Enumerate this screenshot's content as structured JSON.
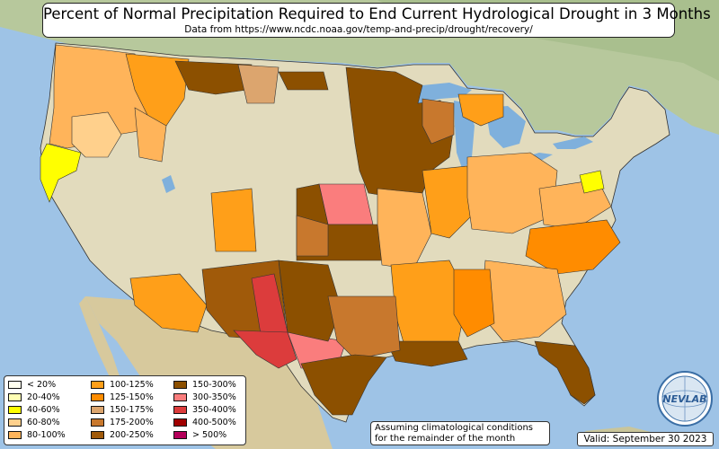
{
  "title": "Percent of Normal Precipitation Required to End Current Hydrological Drought in 3 Months",
  "subtitle": "Data from https://www.ncdc.noaa.gov/temp-and-precip/drought/recovery/",
  "legend": {
    "items": [
      {
        "label": "< 20%",
        "color": "#fffff0"
      },
      {
        "label": "20-40%",
        "color": "#ffffb4"
      },
      {
        "label": "40-60%",
        "color": "#ffff00"
      },
      {
        "label": "60-80%",
        "color": "#ffd08c"
      },
      {
        "label": "80-100%",
        "color": "#ffb45a"
      },
      {
        "label": "100-125%",
        "color": "#ff9f19"
      },
      {
        "label": "125-150%",
        "color": "#ff8c00"
      },
      {
        "label": "150-175%",
        "color": "#dca56e"
      },
      {
        "label": "175-200%",
        "color": "#c8782d"
      },
      {
        "label": "200-250%",
        "color": "#a05a0a"
      },
      {
        "label": "150-300%",
        "color": "#8c5000"
      },
      {
        "label": "300-350%",
        "color": "#fa7d7d"
      },
      {
        "label": "350-400%",
        "color": "#dc3c3c"
      },
      {
        "label": "400-500%",
        "color": "#a00000"
      },
      {
        "label": "> 500%",
        "color": "#b4005a"
      }
    ]
  },
  "note": {
    "line1": "Assuming climatological conditions",
    "line2": "for the remainder of the month"
  },
  "valid": "Valid: September 30 2023",
  "logo_text": "NEVLAB",
  "colors": {
    "ocean": "#9ec3e6",
    "land_us": "#e3dcc0",
    "land_canada": "#b9c9a0",
    "land_mexico": "#d8cba0",
    "lake": "#7fb0dc"
  }
}
